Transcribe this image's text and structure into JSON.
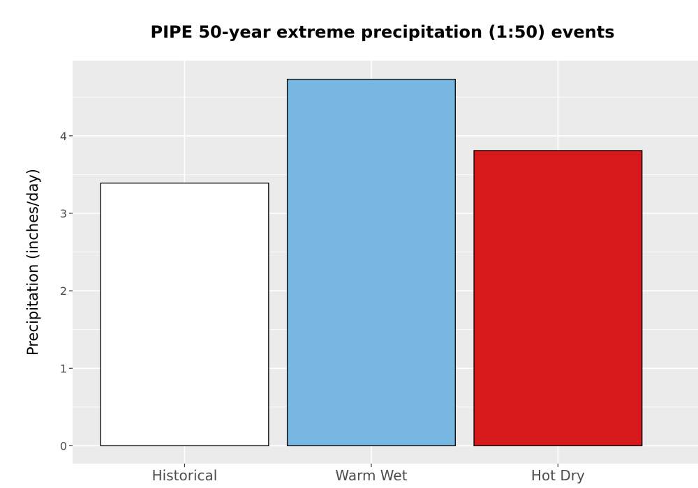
{
  "chart_data": {
    "type": "bar",
    "title": "PIPE 50-year extreme precipitation (1:50) events",
    "xlabel": "",
    "ylabel": "Precipitation (inches/day)",
    "categories": [
      "Historical",
      "Warm Wet",
      "Hot Dry"
    ],
    "values": [
      3.39,
      4.73,
      3.81
    ],
    "bar_colors": [
      "#ffffff",
      "#78b7e1",
      "#d7191c"
    ],
    "bar_outline": "#000000",
    "ylim": [
      -0.23,
      4.97
    ],
    "yticks": [
      0,
      1,
      2,
      3,
      4
    ],
    "ytick_labels": [
      "0",
      "1",
      "2",
      "3",
      "4"
    ],
    "grid": true,
    "panel_background": "#ebebeb",
    "legend": "none"
  }
}
